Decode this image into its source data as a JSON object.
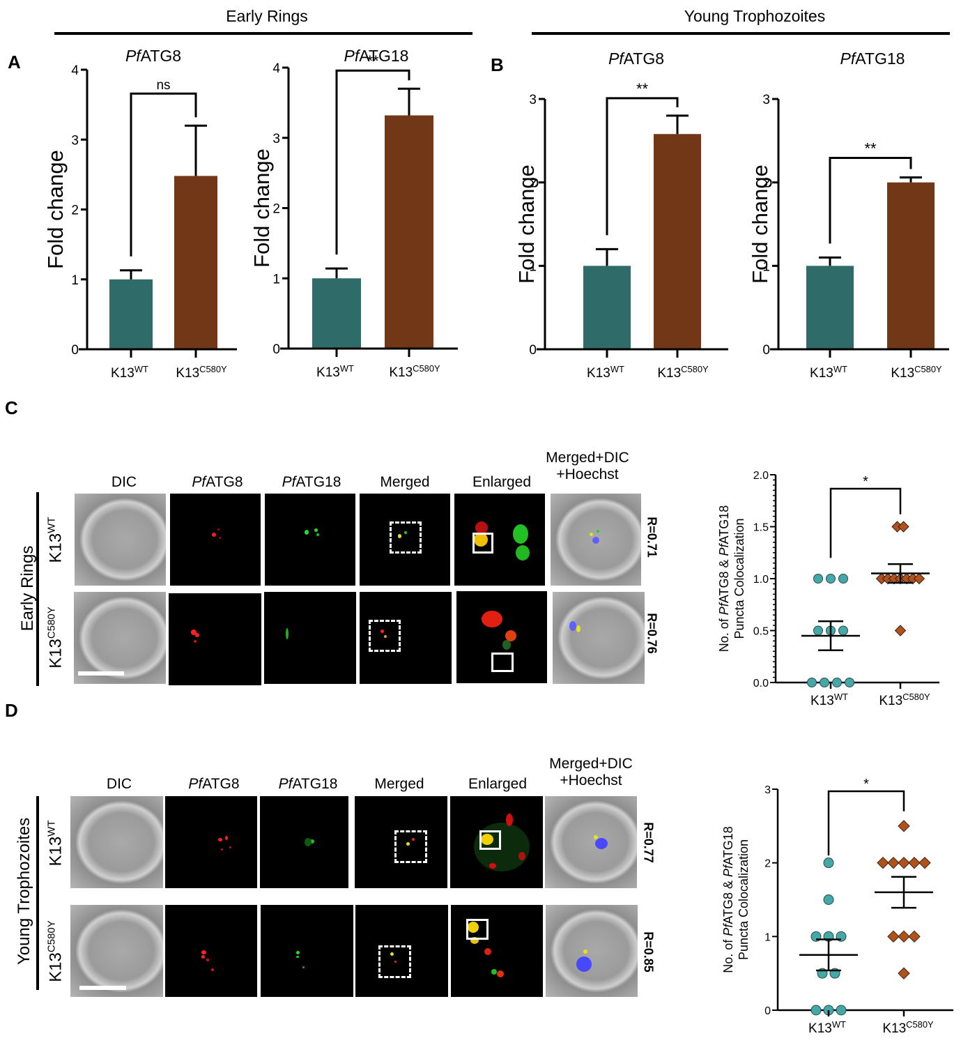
{
  "stages": {
    "early_rings": "Early Rings",
    "young_trophozoites": "Young Trophozoites"
  },
  "panel_letters": {
    "a": "A",
    "b": "B",
    "c": "C",
    "d": "D"
  },
  "colors": {
    "wt": "#2e6b69",
    "mutant": "#713716",
    "wt_point": "#45a8a8",
    "mutant_point": "#b0521c"
  },
  "groups": {
    "wt_base": "K13",
    "wt_sup": "WT",
    "mut_base": "K13",
    "mut_sup": "C580Y"
  },
  "microscopy": {
    "columns": {
      "dic": "DIC",
      "atg8_italic": "Pf",
      "atg8_rest": "ATG8",
      "atg18_italic": "Pf",
      "atg18_rest": "ATG18",
      "merged": "Merged",
      "enlarged": "Enlarged",
      "merged_dic_line1": "Merged+DIC",
      "merged_dic_line2": "+Hoechst"
    },
    "c": {
      "stage_label": "Early Rings",
      "rows": [
        {
          "label_base": "K13",
          "label_sup": "WT",
          "r": "R=0.71"
        },
        {
          "label_base": "K13",
          "label_sup": "C580Y",
          "r": "R=0.76"
        }
      ]
    },
    "d": {
      "stage_label": "Young Trophozoites",
      "rows": [
        {
          "label_base": "K13",
          "label_sup": "WT",
          "r": "R=0.77"
        },
        {
          "label_base": "K13",
          "label_sup": "C580Y",
          "r": "R=0.85"
        }
      ]
    }
  },
  "chart_data": [
    {
      "id": "A-PfATG8",
      "type": "bar",
      "panel": "A",
      "stage": "Early Rings",
      "title_italic": "Pf",
      "title_rest": "ATG8",
      "ylabel": "Fold change",
      "categories": [
        "K13WT",
        "K13C580Y"
      ],
      "values": [
        1.0,
        2.48
      ],
      "errors": [
        0.13,
        0.72
      ],
      "ylim": [
        0,
        4
      ],
      "yticks": [
        "0",
        "1",
        "2",
        "3",
        "4"
      ],
      "significance": "ns"
    },
    {
      "id": "A-PfATG18",
      "type": "bar",
      "panel": "A",
      "stage": "Early Rings",
      "title_italic": "Pf",
      "title_rest": "ATG18",
      "ylabel": "Fold change",
      "categories": [
        "K13WT",
        "K13C580Y"
      ],
      "values": [
        1.0,
        3.32
      ],
      "errors": [
        0.14,
        0.38
      ],
      "ylim": [
        0,
        4
      ],
      "yticks": [
        "0",
        "1",
        "2",
        "3",
        "4"
      ],
      "significance": "**"
    },
    {
      "id": "B-PfATG8",
      "type": "bar",
      "panel": "B",
      "stage": "Young Trophozoites",
      "title_italic": "Pf",
      "title_rest": "ATG8",
      "ylabel": "Fold change",
      "categories": [
        "K13WT",
        "K13C580Y"
      ],
      "values": [
        1.0,
        2.58
      ],
      "errors": [
        0.2,
        0.22
      ],
      "ylim": [
        0,
        3
      ],
      "yticks": [
        "0",
        "1",
        "2",
        "3"
      ],
      "significance": "**"
    },
    {
      "id": "B-PfATG18",
      "type": "bar",
      "panel": "B",
      "stage": "Young Trophozoites",
      "title_italic": "Pf",
      "title_rest": "ATG18",
      "ylabel": "Fold change",
      "categories": [
        "K13WT",
        "K13C580Y"
      ],
      "values": [
        1.0,
        2.0
      ],
      "errors": [
        0.1,
        0.06
      ],
      "ylim": [
        0,
        3
      ],
      "yticks": [
        "0",
        "1",
        "2",
        "3"
      ],
      "significance": "**"
    },
    {
      "id": "C-colocalization",
      "type": "scatter",
      "panel": "C",
      "stage": "Early Rings",
      "ylabel_line1": "No. of PfATG8 & PfATG18",
      "ylabel_line2": "Puncta Colocalization",
      "categories": [
        "K13WT",
        "K13C580Y"
      ],
      "series": [
        {
          "name": "K13WT",
          "values": [
            1.0,
            1.0,
            1.0,
            0.5,
            0.5,
            0.5,
            0.0,
            0.0,
            0.0,
            0.0
          ],
          "mean": 0.45,
          "sem": 0.14
        },
        {
          "name": "K13C580Y",
          "values": [
            1.5,
            1.5,
            1.0,
            1.0,
            1.0,
            1.0,
            1.0,
            1.0,
            1.0,
            0.5
          ],
          "mean": 1.05,
          "sem": 0.09
        }
      ],
      "ylim": [
        0,
        2.0
      ],
      "yticks": [
        "0.0",
        "0.5",
        "1.0",
        "1.5",
        "2.0"
      ],
      "minor_ticks": true,
      "significance": "*"
    },
    {
      "id": "D-colocalization",
      "type": "scatter",
      "panel": "D",
      "stage": "Young Trophozoites",
      "ylabel_line1": "No. of PfATG8 & PfATG18",
      "ylabel_line2": "Puncta Colocalization",
      "categories": [
        "K13WT",
        "K13C580Y"
      ],
      "series": [
        {
          "name": "K13WT",
          "values": [
            2.0,
            1.5,
            1.0,
            1.0,
            1.0,
            0.5,
            0.5,
            0.0,
            0.0,
            0.0
          ],
          "mean": 0.75,
          "sem": 0.21
        },
        {
          "name": "K13C580Y",
          "values": [
            2.5,
            2.0,
            2.0,
            2.0,
            2.0,
            2.0,
            1.0,
            1.0,
            1.0,
            0.5
          ],
          "mean": 1.6,
          "sem": 0.21
        }
      ],
      "ylim": [
        0,
        3
      ],
      "yticks": [
        "0",
        "1",
        "2",
        "3"
      ],
      "minor_ticks": false,
      "significance": "*"
    }
  ]
}
